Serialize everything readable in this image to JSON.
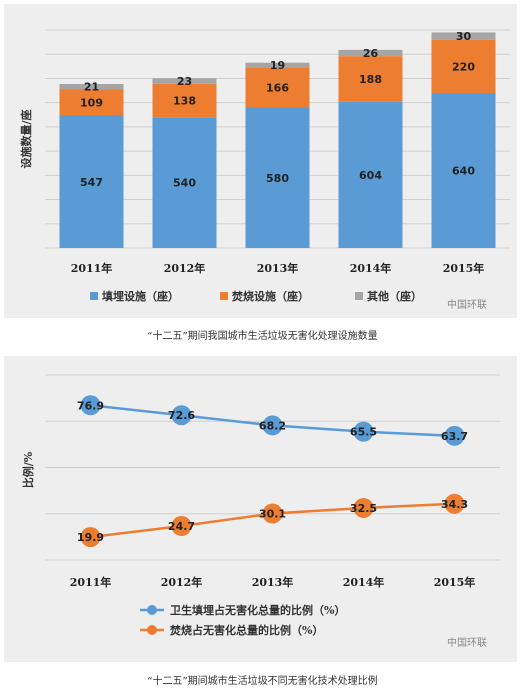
{
  "charts": [
    {
      "caption": "“十二五”期间我国城市生活垃圾无害化处理设施数量",
      "watermark": "中国环联",
      "chart_data": {
        "type": "bar",
        "stacked": true,
        "title": "",
        "ylabel": "设施数量/座",
        "xlabel": "",
        "categories": [
          "2011年",
          "2012年",
          "2013年",
          "2014年",
          "2015年"
        ],
        "series": [
          {
            "name": "填埋设施（座）",
            "values": [
              547,
              540,
              580,
              604,
              640
            ],
            "color": "#5b9bd5"
          },
          {
            "name": "焚烧设施（座）",
            "values": [
              109,
              138,
              166,
              188,
              220
            ],
            "color": "#ed7d31"
          },
          {
            "name": "其他（座）",
            "values": [
              21,
              23,
              19,
              26,
              30
            ],
            "color": "#a5a5a5"
          }
        ],
        "ylim": [
          0,
          900
        ],
        "grid": true,
        "legend": "bottom"
      }
    },
    {
      "caption": "“十二五”期间城市生活垃圾不同无害化技术处理比例",
      "watermark": "中国环联",
      "chart_data": {
        "type": "line",
        "title": "",
        "ylabel": "比例/%",
        "xlabel": "",
        "categories": [
          "2011年",
          "2012年",
          "2013年",
          "2014年",
          "2015年"
        ],
        "series": [
          {
            "name": "卫生填埋占无害化总量的比例（%）",
            "values": [
              76.9,
              72.6,
              68.2,
              65.5,
              63.7
            ],
            "color": "#5b9bd5"
          },
          {
            "name": "焚烧占无害化总量的比例（%）",
            "values": [
              19.9,
              24.7,
              30.1,
              32.5,
              34.3
            ],
            "color": "#ed7d31"
          }
        ],
        "ylim": [
          10,
          90
        ],
        "grid": true,
        "legend": "bottom"
      }
    }
  ]
}
